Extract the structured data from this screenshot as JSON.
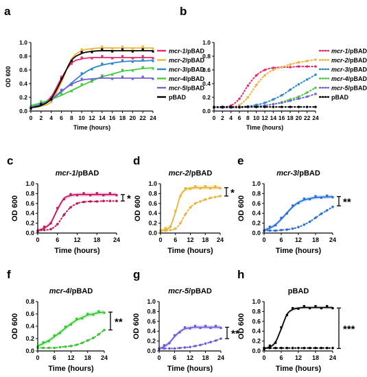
{
  "figure": {
    "panel_letters": [
      "a",
      "b",
      "c",
      "d",
      "e",
      "f",
      "g",
      "h"
    ]
  },
  "chart_data": [
    {
      "panel": "a",
      "type": "line",
      "xlabel": "Time (hours)",
      "ylabel": "OD 600",
      "xlim": [
        0,
        24
      ],
      "ylim": [
        0,
        1.0
      ],
      "xticks": [
        0,
        2,
        4,
        6,
        8,
        10,
        12,
        14,
        16,
        18,
        20,
        22,
        24
      ],
      "yticks": [
        0.0,
        0.2,
        0.4,
        0.6,
        0.8,
        1.0
      ],
      "legend": {
        "placement": "right"
      },
      "series": [
        {
          "name": "mcr-1/pBAD",
          "color": "#e8266e",
          "style": "fit",
          "x": [
            0,
            2,
            4,
            6,
            8,
            10,
            12,
            14,
            16,
            18,
            20,
            22,
            24
          ],
          "y": [
            0.05,
            0.1,
            0.21,
            0.48,
            0.7,
            0.76,
            0.78,
            0.78,
            0.78,
            0.78,
            0.78,
            0.78,
            0.78
          ]
        },
        {
          "name": "mcr-2/pBAD",
          "color": "#f2b33d",
          "style": "fit",
          "x": [
            0,
            2,
            4,
            6,
            8,
            10,
            12,
            14,
            16,
            18,
            20,
            22,
            24
          ],
          "y": [
            0.05,
            0.07,
            0.14,
            0.42,
            0.76,
            0.88,
            0.91,
            0.92,
            0.92,
            0.92,
            0.92,
            0.92,
            0.92
          ]
        },
        {
          "name": "mcr-3/pBAD",
          "color": "#2b86cf",
          "style": "fit",
          "x": [
            0,
            2,
            4,
            6,
            8,
            10,
            12,
            14,
            16,
            18,
            20,
            22,
            24
          ],
          "y": [
            0.06,
            0.1,
            0.17,
            0.28,
            0.41,
            0.53,
            0.62,
            0.67,
            0.7,
            0.72,
            0.73,
            0.73,
            0.74
          ]
        },
        {
          "name": "mcr-4/pBAD",
          "color": "#44cc3a",
          "style": "fit",
          "x": [
            0,
            2,
            4,
            6,
            8,
            10,
            12,
            14,
            16,
            18,
            20,
            22,
            24
          ],
          "y": [
            0.08,
            0.12,
            0.17,
            0.23,
            0.3,
            0.37,
            0.44,
            0.5,
            0.54,
            0.58,
            0.6,
            0.62,
            0.63
          ]
        },
        {
          "name": "mcr-5/pBAD",
          "color": "#6f63d6",
          "style": "fit",
          "x": [
            0,
            2,
            4,
            6,
            8,
            10,
            12,
            14,
            16,
            18,
            20,
            22,
            24
          ],
          "y": [
            0.05,
            0.09,
            0.17,
            0.29,
            0.39,
            0.45,
            0.47,
            0.48,
            0.48,
            0.48,
            0.48,
            0.48,
            0.48
          ]
        },
        {
          "name": "pBAD",
          "color": "#000000",
          "style": "fit",
          "x": [
            0,
            2,
            4,
            6,
            8,
            10,
            12,
            14,
            16,
            18,
            20,
            22,
            24
          ],
          "y": [
            0.05,
            0.08,
            0.18,
            0.45,
            0.74,
            0.84,
            0.87,
            0.88,
            0.88,
            0.88,
            0.88,
            0.88,
            0.88
          ]
        }
      ]
    },
    {
      "panel": "b",
      "type": "line",
      "xlabel": "Time (hours)",
      "ylabel": "",
      "xlim": [
        0,
        24
      ],
      "ylim": [
        0,
        1.0
      ],
      "xticks": [
        0,
        2,
        4,
        6,
        8,
        10,
        12,
        14,
        16,
        18,
        20,
        22,
        24
      ],
      "yticks": [
        0.0,
        0.2,
        0.4,
        0.6,
        0.8,
        1.0
      ],
      "legend": {
        "placement": "right"
      },
      "series": [
        {
          "name": "mcr-1/pBAD",
          "color": "#e8266e",
          "style": "dotted",
          "x": [
            0,
            2,
            4,
            6,
            8,
            10,
            12,
            14,
            16,
            18,
            20,
            22,
            24
          ],
          "y": [
            0.05,
            0.06,
            0.08,
            0.18,
            0.37,
            0.52,
            0.6,
            0.63,
            0.64,
            0.64,
            0.65,
            0.65,
            0.65
          ]
        },
        {
          "name": "mcr-2/pBAD",
          "color": "#f2b33d",
          "style": "dotted",
          "x": [
            0,
            2,
            4,
            6,
            8,
            10,
            12,
            14,
            16,
            18,
            20,
            22,
            24
          ],
          "y": [
            0.05,
            0.05,
            0.06,
            0.09,
            0.2,
            0.38,
            0.52,
            0.6,
            0.64,
            0.68,
            0.71,
            0.73,
            0.75
          ]
        },
        {
          "name": "mcr-3/pBAD",
          "color": "#2b86cf",
          "style": "dotted",
          "x": [
            0,
            2,
            4,
            6,
            8,
            10,
            12,
            14,
            16,
            18,
            20,
            22,
            24
          ],
          "y": [
            0.05,
            0.05,
            0.05,
            0.06,
            0.07,
            0.09,
            0.12,
            0.17,
            0.23,
            0.31,
            0.39,
            0.46,
            0.53
          ]
        },
        {
          "name": "mcr-4/pBAD",
          "color": "#44cc3a",
          "style": "dotted",
          "x": [
            0,
            2,
            4,
            6,
            8,
            10,
            12,
            14,
            16,
            18,
            20,
            22,
            24
          ],
          "y": [
            0.05,
            0.05,
            0.05,
            0.05,
            0.06,
            0.07,
            0.08,
            0.1,
            0.13,
            0.17,
            0.21,
            0.27,
            0.34
          ]
        },
        {
          "name": "mcr-5/pBAD",
          "color": "#6f63d6",
          "style": "dotted",
          "x": [
            0,
            2,
            4,
            6,
            8,
            10,
            12,
            14,
            16,
            18,
            20,
            22,
            24
          ],
          "y": [
            0.05,
            0.05,
            0.05,
            0.05,
            0.06,
            0.07,
            0.08,
            0.1,
            0.12,
            0.15,
            0.18,
            0.21,
            0.25
          ]
        },
        {
          "name": "pBAD",
          "color": "#000000",
          "style": "dotted",
          "x": [
            0,
            2,
            4,
            6,
            8,
            10,
            12,
            14,
            16,
            18,
            20,
            22,
            24
          ],
          "y": [
            0.06,
            0.06,
            0.06,
            0.06,
            0.06,
            0.06,
            0.06,
            0.06,
            0.06,
            0.06,
            0.06,
            0.06,
            0.06
          ]
        }
      ]
    },
    {
      "panel": "c",
      "type": "line",
      "title": "mcr-1/pBAD",
      "xlabel": "Time (hours)",
      "ylabel": "OD 600",
      "xlim": [
        0,
        24
      ],
      "ylim": [
        0,
        1.0
      ],
      "xticks": [
        0,
        6,
        12,
        18,
        24
      ],
      "yticks": [
        0.0,
        0.2,
        0.4,
        0.6,
        0.8,
        1.0
      ],
      "color": "#c2185b",
      "band_color": "#f7a8d4",
      "significance": "*",
      "bracket": [
        0.65,
        0.78
      ],
      "series": [
        {
          "style": "fit",
          "x": [
            0,
            2,
            4,
            6,
            8,
            10,
            12,
            14,
            16,
            18,
            20,
            22,
            24
          ],
          "y": [
            0.05,
            0.1,
            0.21,
            0.48,
            0.7,
            0.76,
            0.78,
            0.78,
            0.78,
            0.78,
            0.78,
            0.78,
            0.78
          ]
        },
        {
          "style": "dotted",
          "x": [
            0,
            2,
            4,
            6,
            8,
            10,
            12,
            14,
            16,
            18,
            20,
            22,
            24
          ],
          "y": [
            0.05,
            0.06,
            0.08,
            0.18,
            0.37,
            0.52,
            0.6,
            0.63,
            0.64,
            0.64,
            0.65,
            0.65,
            0.65
          ]
        }
      ]
    },
    {
      "panel": "d",
      "type": "line",
      "title": "mcr-2/pBAD",
      "xlabel": "Time (hours)",
      "ylabel": "OD 600",
      "xlim": [
        0,
        24
      ],
      "ylim": [
        0,
        1.0
      ],
      "xticks": [
        0,
        6,
        12,
        18,
        24
      ],
      "yticks": [
        0.0,
        0.2,
        0.4,
        0.6,
        0.8,
        1.0
      ],
      "color": "#e8b33a",
      "band_color": "#f7dd9a",
      "significance": "*",
      "bracket": [
        0.75,
        0.92
      ],
      "series": [
        {
          "style": "fit",
          "x": [
            0,
            2,
            4,
            6,
            8,
            10,
            12,
            14,
            16,
            18,
            20,
            22,
            24
          ],
          "y": [
            0.05,
            0.07,
            0.14,
            0.42,
            0.76,
            0.88,
            0.91,
            0.92,
            0.92,
            0.92,
            0.92,
            0.92,
            0.92
          ]
        },
        {
          "style": "dotted",
          "x": [
            0,
            2,
            4,
            6,
            8,
            10,
            12,
            14,
            16,
            18,
            20,
            22,
            24
          ],
          "y": [
            0.05,
            0.05,
            0.06,
            0.09,
            0.2,
            0.38,
            0.52,
            0.6,
            0.64,
            0.68,
            0.71,
            0.73,
            0.75
          ]
        }
      ]
    },
    {
      "panel": "e",
      "type": "line",
      "title": "mcr-3/pBAD",
      "xlabel": "Time (hours)",
      "ylabel": "OD 600",
      "xlim": [
        0,
        24
      ],
      "ylim": [
        0,
        1.0
      ],
      "xticks": [
        0,
        6,
        12,
        18,
        24
      ],
      "yticks": [
        0.0,
        0.2,
        0.4,
        0.6,
        0.8,
        1.0
      ],
      "color": "#2b6fd6",
      "band_color": "#a6ccf2",
      "significance": "**",
      "bracket": [
        0.55,
        0.74
      ],
      "series": [
        {
          "style": "fit",
          "x": [
            0,
            2,
            4,
            6,
            8,
            10,
            12,
            14,
            16,
            18,
            20,
            22,
            24
          ],
          "y": [
            0.06,
            0.1,
            0.17,
            0.28,
            0.41,
            0.53,
            0.62,
            0.67,
            0.7,
            0.72,
            0.73,
            0.73,
            0.74
          ]
        },
        {
          "style": "dotted",
          "x": [
            0,
            2,
            4,
            6,
            8,
            10,
            12,
            14,
            16,
            18,
            20,
            22,
            24
          ],
          "y": [
            0.05,
            0.05,
            0.05,
            0.06,
            0.07,
            0.09,
            0.12,
            0.17,
            0.23,
            0.31,
            0.39,
            0.46,
            0.53
          ]
        }
      ]
    },
    {
      "panel": "f",
      "type": "line",
      "title": "mcr-4/pBAD",
      "xlabel": "Time (hours)",
      "ylabel": "OD 600",
      "xlim": [
        0,
        24
      ],
      "ylim": [
        0,
        0.8
      ],
      "xticks": [
        0,
        6,
        12,
        18,
        24
      ],
      "yticks": [
        0.0,
        0.2,
        0.4,
        0.6,
        0.8
      ],
      "color": "#3ec23a",
      "band_color": "#b5eeb0",
      "significance": "**",
      "bracket": [
        0.34,
        0.63
      ],
      "series": [
        {
          "style": "fit",
          "x": [
            0,
            2,
            4,
            6,
            8,
            10,
            12,
            14,
            16,
            18,
            20,
            22,
            24
          ],
          "y": [
            0.08,
            0.12,
            0.17,
            0.23,
            0.3,
            0.37,
            0.44,
            0.5,
            0.54,
            0.58,
            0.6,
            0.62,
            0.63
          ]
        },
        {
          "style": "dotted",
          "x": [
            0,
            2,
            4,
            6,
            8,
            10,
            12,
            14,
            16,
            18,
            20,
            22,
            24
          ],
          "y": [
            0.05,
            0.05,
            0.05,
            0.05,
            0.06,
            0.07,
            0.08,
            0.1,
            0.13,
            0.17,
            0.21,
            0.27,
            0.34
          ]
        }
      ]
    },
    {
      "panel": "g",
      "type": "line",
      "title": "mcr-5/pBAD",
      "xlabel": "Time (hours)",
      "ylabel": "OD 600",
      "xlim": [
        0,
        24
      ],
      "ylim": [
        0,
        1.0
      ],
      "xticks": [
        0,
        6,
        12,
        18,
        24
      ],
      "yticks": [
        0.0,
        0.2,
        0.4,
        0.6,
        0.8,
        1.0
      ],
      "color": "#6f5fd6",
      "band_color": "#c9c2f2",
      "significance": "**",
      "bracket": [
        0.25,
        0.48
      ],
      "series": [
        {
          "style": "fit",
          "x": [
            0,
            2,
            4,
            6,
            8,
            10,
            12,
            14,
            16,
            18,
            20,
            22,
            24
          ],
          "y": [
            0.05,
            0.09,
            0.17,
            0.29,
            0.39,
            0.45,
            0.47,
            0.48,
            0.48,
            0.48,
            0.48,
            0.48,
            0.48
          ]
        },
        {
          "style": "dotted",
          "x": [
            0,
            2,
            4,
            6,
            8,
            10,
            12,
            14,
            16,
            18,
            20,
            22,
            24
          ],
          "y": [
            0.05,
            0.05,
            0.05,
            0.05,
            0.06,
            0.07,
            0.08,
            0.1,
            0.12,
            0.15,
            0.18,
            0.21,
            0.25
          ]
        }
      ]
    },
    {
      "panel": "h",
      "type": "line",
      "title": "pBAD",
      "xlabel": "Time (hours)",
      "ylabel": "OD 600",
      "xlim": [
        0,
        24
      ],
      "ylim": [
        0,
        1.0
      ],
      "xticks": [
        0,
        6,
        12,
        18,
        24
      ],
      "yticks": [
        0.0,
        0.2,
        0.4,
        0.6,
        0.8,
        1.0
      ],
      "color": "#000000",
      "band_color": "#d6d6d6",
      "significance": "***",
      "bracket": [
        0.05,
        0.87
      ],
      "series": [
        {
          "style": "fit",
          "x": [
            0,
            2,
            4,
            6,
            8,
            10,
            12,
            14,
            16,
            18,
            20,
            22,
            24
          ],
          "y": [
            0.05,
            0.08,
            0.18,
            0.45,
            0.74,
            0.84,
            0.87,
            0.88,
            0.88,
            0.88,
            0.88,
            0.88,
            0.88
          ]
        },
        {
          "style": "dotted",
          "x": [
            0,
            2,
            4,
            6,
            8,
            10,
            12,
            14,
            16,
            18,
            20,
            22,
            24
          ],
          "y": [
            0.06,
            0.06,
            0.06,
            0.06,
            0.06,
            0.06,
            0.06,
            0.06,
            0.06,
            0.06,
            0.06,
            0.06,
            0.06
          ]
        }
      ]
    }
  ]
}
